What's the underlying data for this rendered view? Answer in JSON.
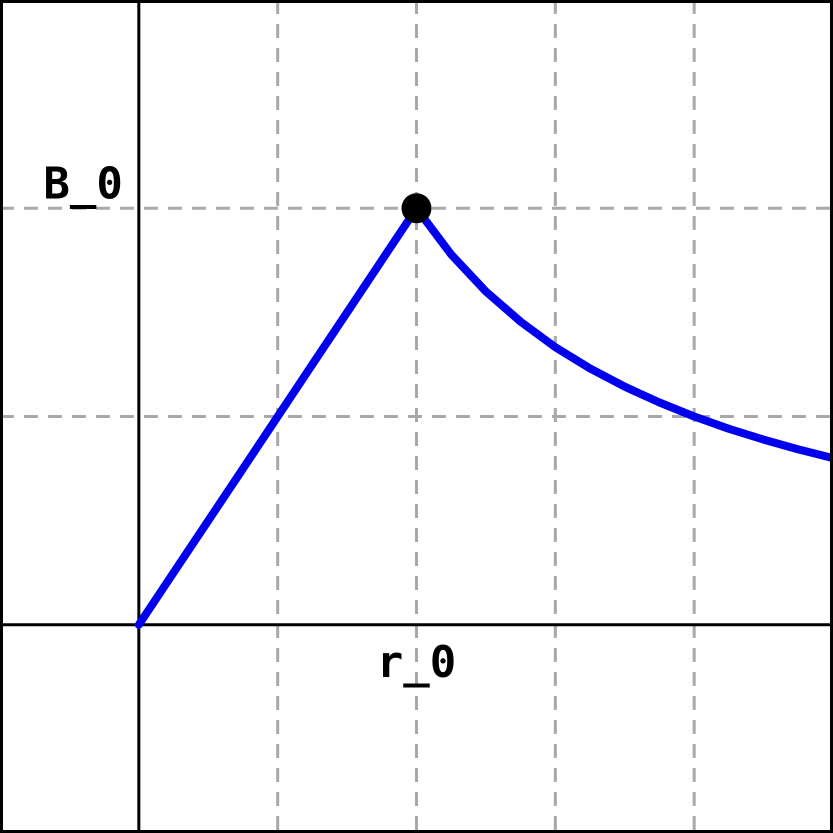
{
  "chart_data": {
    "type": "line",
    "title": "",
    "xlabel": "",
    "ylabel": "",
    "xlim": [
      -1,
      5
    ],
    "ylim": [
      -1,
      3
    ],
    "grid": true,
    "x_ticks": [
      {
        "value": 2,
        "label": "r_0"
      }
    ],
    "y_ticks": [
      {
        "value": 2,
        "label": "B_0"
      }
    ],
    "series": [
      {
        "color": "#0000ee",
        "points": [
          [
            0,
            0
          ],
          [
            0.25,
            0.25
          ],
          [
            0.5,
            0.5
          ],
          [
            0.75,
            0.75
          ],
          [
            1,
            1
          ],
          [
            1.25,
            1.25
          ],
          [
            1.5,
            1.5
          ],
          [
            1.75,
            1.75
          ],
          [
            2,
            2
          ],
          [
            2.25,
            1.778
          ],
          [
            2.5,
            1.6
          ],
          [
            2.75,
            1.455
          ],
          [
            3,
            1.333
          ],
          [
            3.25,
            1.231
          ],
          [
            3.5,
            1.143
          ],
          [
            3.75,
            1.067
          ],
          [
            4,
            1
          ],
          [
            4.25,
            0.941
          ],
          [
            4.5,
            0.889
          ],
          [
            4.75,
            0.842
          ],
          [
            5,
            0.8
          ]
        ]
      }
    ],
    "marker": {
      "x": 2,
      "y": 2,
      "color": "#000000"
    }
  }
}
